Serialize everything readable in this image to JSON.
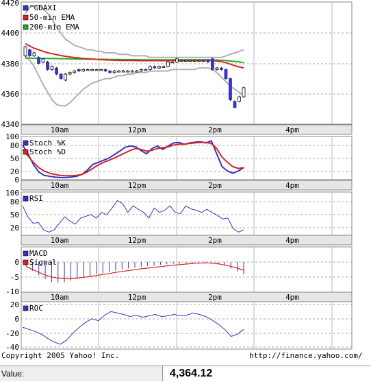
{
  "chart_data": [
    {
      "type": "candlestick",
      "panel": "price",
      "ylim": [
        4340,
        4420
      ],
      "yticks": [
        "4340",
        "4360",
        "4380",
        "4400",
        "4420"
      ],
      "xticks": [
        "10am",
        "12pm",
        "2pm",
        "4pm"
      ],
      "legend": [
        "^GDAXI",
        "50-min EMA",
        "200-min EMA"
      ],
      "colors": {
        "candle": "#3333cc",
        "ema50": "#dd2222",
        "ema200": "#22aa22",
        "bands": "#b0b0b0"
      },
      "candles": [
        {
          "o": 4385,
          "c": 4391
        },
        {
          "o": 4389,
          "c": 4385
        },
        {
          "o": 4385,
          "c": 4387
        },
        {
          "o": 4384,
          "c": 4380
        },
        {
          "o": 4381,
          "c": 4383
        },
        {
          "o": 4381,
          "c": 4376
        },
        {
          "o": 4376,
          "c": 4378
        },
        {
          "o": 4377,
          "c": 4373
        },
        {
          "o": 4373,
          "c": 4370
        },
        {
          "o": 4369,
          "c": 4373
        },
        {
          "o": 4373,
          "c": 4374
        },
        {
          "o": 4374,
          "c": 4375
        },
        {
          "o": 4376,
          "c": 4375
        },
        {
          "o": 4375,
          "c": 4376
        },
        {
          "o": 4376,
          "c": 4376
        },
        {
          "o": 4376,
          "c": 4376
        },
        {
          "o": 4376,
          "c": 4376
        },
        {
          "o": 4376,
          "c": 4376
        },
        {
          "o": 4376,
          "c": 4375
        },
        {
          "o": 4375,
          "c": 4374
        },
        {
          "o": 4374,
          "c": 4375
        },
        {
          "o": 4375,
          "c": 4375
        },
        {
          "o": 4375,
          "c": 4375
        },
        {
          "o": 4375,
          "c": 4375
        },
        {
          "o": 4375,
          "c": 4375
        },
        {
          "o": 4375,
          "c": 4375
        },
        {
          "o": 4375,
          "c": 4376
        },
        {
          "o": 4376,
          "c": 4376
        },
        {
          "o": 4376,
          "c": 4378
        },
        {
          "o": 4378,
          "c": 4377
        },
        {
          "o": 4377,
          "c": 4378
        },
        {
          "o": 4378,
          "c": 4378
        },
        {
          "o": 4378,
          "c": 4381
        },
        {
          "o": 4381,
          "c": 4381
        },
        {
          "o": 4381,
          "c": 4383
        },
        {
          "o": 4382,
          "c": 4382
        },
        {
          "o": 4382,
          "c": 4382
        },
        {
          "o": 4382,
          "c": 4382
        },
        {
          "o": 4382,
          "c": 4382
        },
        {
          "o": 4382,
          "c": 4382
        },
        {
          "o": 4382,
          "c": 4382
        },
        {
          "o": 4382,
          "c": 4381
        },
        {
          "o": 4383,
          "c": 4376
        },
        {
          "o": 4376,
          "c": 4377
        },
        {
          "o": 4377,
          "c": 4376
        },
        {
          "o": 4376,
          "c": 4370
        },
        {
          "o": 4370,
          "c": 4356
        },
        {
          "o": 4355,
          "c": 4351
        },
        {
          "o": 4355,
          "c": 4358
        },
        {
          "o": 4358,
          "c": 4364
        }
      ],
      "ema50": [
        4393,
        4391.5,
        4390,
        4389,
        4388,
        4387,
        4386.4,
        4385.8,
        4385.2,
        4384.7,
        4384.3,
        4383.9,
        4383.6,
        4383.3,
        4383.1,
        4382.9,
        4382.7,
        4382.5,
        4382.3,
        4382.2,
        4382.1,
        4382,
        4381.9,
        4381.9,
        4381.9,
        4381.8,
        4381.8,
        4381.8,
        4381.8,
        4381.8,
        4381.8,
        4381.8,
        4381.8,
        4381.9,
        4381.9,
        4381.9,
        4381.9,
        4381.9,
        4381.9,
        4382,
        4382,
        4382,
        4381.9,
        4381.6,
        4381.2,
        4380.5,
        4379.5,
        4378.5,
        4377.7,
        4377
      ],
      "ema200": [
        4383.5,
        4383.5,
        4383.4,
        4383.4,
        4383.3,
        4383.3,
        4383.2,
        4383.2,
        4383.1,
        4383.1,
        4383,
        4383,
        4382.9,
        4382.9,
        4382.8,
        4382.8,
        4382.7,
        4382.7,
        4382.7,
        4382.6,
        4382.6,
        4382.6,
        4382.5,
        4382.5,
        4382.5,
        4382.5,
        4382.4,
        4382.4,
        4382.4,
        4382.4,
        4382.4,
        4382.4,
        4382.4,
        4382.4,
        4382.4,
        4382.4,
        4382.4,
        4382.4,
        4382.4,
        4382.4,
        4382.4,
        4382.4,
        4382.3,
        4382.2,
        4382.1,
        4381.9,
        4381.6,
        4381.3,
        4381,
        4380.6
      ],
      "band_upper": [
        4413,
        4417,
        4418,
        4418,
        4416,
        4413,
        4409,
        4404,
        4400,
        4396,
        4394,
        4392,
        4391,
        4390,
        4389,
        4389,
        4388,
        4388,
        4387,
        4387,
        4387,
        4386,
        4386,
        4386,
        4385,
        4385,
        4385,
        4385,
        4384,
        4384,
        4384,
        4384,
        4384,
        4384,
        4384,
        4384,
        4384,
        4384,
        4384,
        4384,
        4384,
        4384,
        4384,
        4384,
        4384,
        4385,
        4386,
        4387,
        4388,
        4389
      ],
      "band_lower": [
        4385,
        4382,
        4378,
        4372,
        4366,
        4361,
        4356,
        4353,
        4352,
        4352,
        4354,
        4357,
        4360,
        4363,
        4365,
        4367,
        4368,
        4369,
        4370,
        4370,
        4371,
        4372,
        4372,
        4373,
        4373,
        4374,
        4374,
        4374,
        4375,
        4375,
        4375,
        4375,
        4375,
        4376,
        4376,
        4376,
        4376,
        4376,
        4376,
        4377,
        4377,
        4377,
        4376,
        4374,
        4371,
        4368,
        4365,
        4363,
        4361,
        4359
      ]
    },
    {
      "type": "line",
      "panel": "stochastic",
      "ylim": [
        0,
        100
      ],
      "yticks": [
        "0",
        "20",
        "50",
        "80",
        "100"
      ],
      "xticks": [
        "10am",
        "12pm",
        "2pm",
        "4pm"
      ],
      "series": [
        {
          "name": "Stoch %K",
          "color": "#3333cc",
          "values": [
            80,
            60,
            35,
            18,
            10,
            8,
            6,
            5,
            5,
            6,
            8,
            12,
            22,
            35,
            40,
            45,
            50,
            58,
            66,
            75,
            78,
            76,
            67,
            60,
            72,
            78,
            70,
            78,
            85,
            86,
            82,
            85,
            87,
            88,
            85,
            90,
            60,
            30,
            20,
            15,
            20,
            28
          ]
        },
        {
          "name": "Stoch %D",
          "color": "#dd2222",
          "values": [
            70,
            55,
            40,
            28,
            20,
            15,
            12,
            10,
            9,
            9,
            10,
            12,
            18,
            26,
            34,
            40,
            45,
            50,
            56,
            62,
            68,
            72,
            70,
            66,
            68,
            72,
            74,
            76,
            80,
            82,
            82,
            84,
            85,
            86,
            86,
            84,
            72,
            52,
            40,
            30,
            26,
            28
          ]
        }
      ]
    },
    {
      "type": "line",
      "panel": "rsi",
      "ylim": [
        0,
        100
      ],
      "yticks": [
        "20",
        "50",
        "80",
        "100"
      ],
      "xticks": [
        "10am",
        "12pm",
        "2pm",
        "4pm"
      ],
      "series": [
        {
          "name": "RSI",
          "color": "#3333cc",
          "values": [
            70,
            45,
            30,
            32,
            15,
            10,
            15,
            30,
            45,
            35,
            28,
            42,
            46,
            50,
            42,
            55,
            50,
            65,
            82,
            75,
            55,
            70,
            62,
            55,
            42,
            65,
            55,
            60,
            70,
            55,
            52,
            70,
            63,
            60,
            55,
            62,
            55,
            48,
            40,
            42,
            18,
            10,
            15
          ]
        }
      ]
    },
    {
      "type": "line",
      "panel": "macd",
      "ylim": [
        -10,
        0
      ],
      "yticks": [
        "-10",
        "-5",
        "0"
      ],
      "xticks": [
        "10am",
        "12pm",
        "2pm",
        "4pm"
      ],
      "series": [
        {
          "name": "MACD",
          "color": "#3333cc",
          "values": [
            -1.5,
            -3,
            -4.5,
            -5.8,
            -6.8,
            -7,
            -6.8,
            -6.3,
            -5.8,
            -5.3,
            -4.8,
            -4.2,
            -3.7,
            -3.3,
            -2.9,
            -2.5,
            -2.2,
            -1.9,
            -1.6,
            -1.4,
            -1.2,
            -1,
            -0.8,
            -0.6,
            -0.5,
            -0.4,
            -0.3,
            -0.25,
            -0.2,
            -0.3,
            -0.6,
            -1.2,
            -2.2,
            -3.2,
            -4.2
          ]
        },
        {
          "name": "Signal",
          "color": "#dd2222",
          "values": [
            -1.5,
            -2.5,
            -3.5,
            -4.4,
            -5.1,
            -5.5,
            -5.7,
            -5.7,
            -5.5,
            -5.2,
            -4.9,
            -4.6,
            -4.2,
            -3.9,
            -3.5,
            -3.2,
            -2.9,
            -2.6,
            -2.3,
            -2.1,
            -1.8,
            -1.6,
            -1.3,
            -1.1,
            -0.9,
            -0.7,
            -0.5,
            -0.4,
            -0.3,
            -0.4,
            -0.6,
            -1,
            -1.5,
            -2.1,
            -2.8
          ]
        }
      ]
    },
    {
      "type": "line",
      "panel": "roc",
      "ylim": [
        -40,
        20
      ],
      "yticks": [
        "-40",
        "-20",
        "0",
        "20"
      ],
      "xticks": [
        "10am",
        "12pm",
        "2pm",
        "4pm"
      ],
      "series": [
        {
          "name": "ROC",
          "color": "#3333cc",
          "values": [
            -12,
            -15,
            -18,
            -22,
            -28,
            -33,
            -36,
            -30,
            -20,
            -12,
            -5,
            0,
            -3,
            5,
            10,
            8,
            6,
            3,
            5,
            2,
            4,
            6,
            3,
            4,
            6,
            4,
            5,
            8,
            6,
            3,
            -2,
            -8,
            -15,
            -25,
            -22,
            -15
          ]
        }
      ]
    }
  ],
  "footer": {
    "copyright": "Copyright 2005 Yahoo! Inc.",
    "url": "http://finance.yahoo.com/"
  },
  "value_row": {
    "label": "Value:",
    "value": "4,364.12"
  }
}
